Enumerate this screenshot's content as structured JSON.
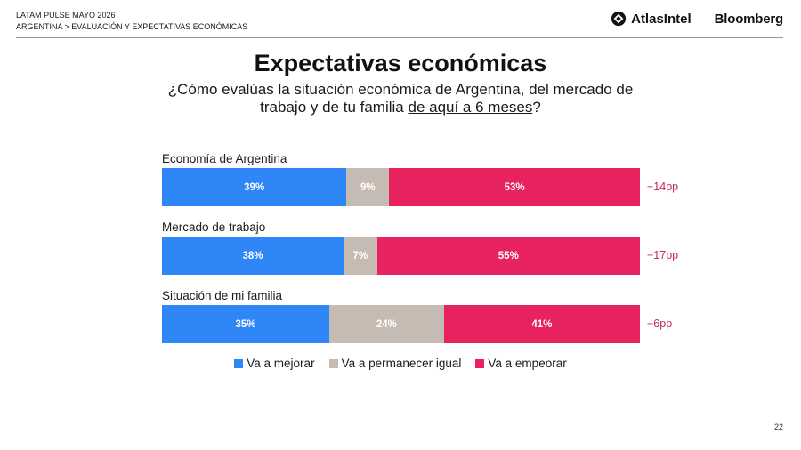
{
  "header": {
    "line1": "LATAM PULSE MAYO 2026",
    "line2": "ARGENTINA > EVALUACIÓN Y EXPECTATIVAS ECONÓMICAS",
    "brand1": "AtlasIntel",
    "brand2": "Bloomberg"
  },
  "title": "Expectativas económicas",
  "subtitle": {
    "pre": "¿Cómo evalúas la situación económica de Argentina, del mercado de trabajo y de tu familia ",
    "underlined": "de aquí a 6 meses",
    "post": "?"
  },
  "chart_data": {
    "type": "bar",
    "orientation": "horizontal",
    "stacked": true,
    "normalized": true,
    "categories": [
      "Economía de Argentina",
      "Mercado de trabajo",
      "Situación de mi familia"
    ],
    "series": [
      {
        "name": "Va a mejorar",
        "color": "#2f86f6",
        "values": [
          39,
          38,
          35
        ],
        "labels": [
          "39%",
          "38%",
          "35%"
        ]
      },
      {
        "name": "Va a permanecer igual",
        "color": "#c6bbb3",
        "values": [
          9,
          7,
          24
        ],
        "labels": [
          "9%",
          "7%",
          "24%"
        ]
      },
      {
        "name": "Va a empeorar",
        "color": "#e8215f",
        "values": [
          53,
          55,
          41
        ],
        "labels": [
          "53%",
          "55%",
          "41%"
        ]
      }
    ],
    "net": [
      "−14pp",
      "−17pp",
      "−6pp"
    ],
    "legend_position": "bottom",
    "grid": false
  },
  "page_number": "22"
}
